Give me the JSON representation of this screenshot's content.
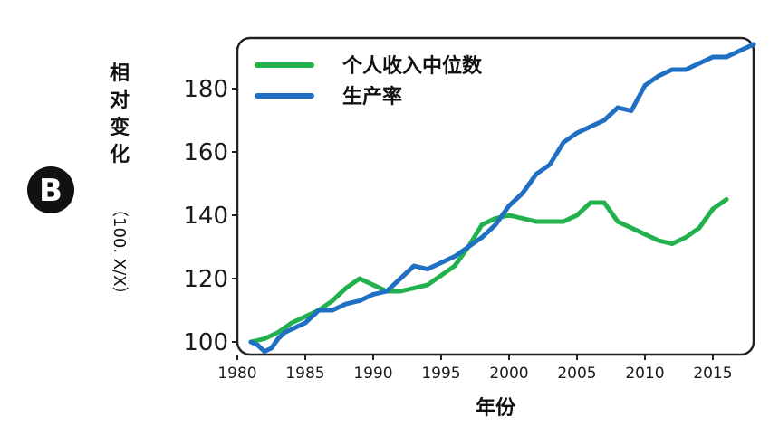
{
  "panel_label": "B",
  "chart_data": {
    "type": "line",
    "xlabel": "年份",
    "ylabel_main": "相对变化",
    "ylabel_unit": "（100. X/X）",
    "xlim": [
      1980,
      2018
    ],
    "ylim": [
      96,
      196
    ],
    "x_ticks": [
      1980,
      1985,
      1990,
      1995,
      2000,
      2005,
      2010,
      2015
    ],
    "y_ticks": [
      100,
      120,
      140,
      160,
      180
    ],
    "legend_position": "top-left",
    "series": [
      {
        "name": "个人收入中位数",
        "color": "#22b14c",
        "x": [
          1981,
          1982,
          1983,
          1984,
          1985,
          1986,
          1987,
          1988,
          1989,
          1990,
          1991,
          1992,
          1993,
          1994,
          1995,
          1996,
          1997,
          1998,
          1999,
          2000,
          2001,
          2002,
          2003,
          2004,
          2005,
          2006,
          2007,
          2008,
          2009,
          2010,
          2011,
          2012,
          2013,
          2014,
          2015,
          2016
        ],
        "values": [
          100,
          101,
          103,
          106,
          108,
          110,
          113,
          117,
          120,
          118,
          116,
          116,
          117,
          118,
          121,
          124,
          130,
          137,
          139,
          140,
          139,
          138,
          138,
          138,
          140,
          144,
          144,
          138,
          136,
          134,
          132,
          131,
          133,
          136,
          142,
          145
        ]
      },
      {
        "name": "生产率",
        "color": "#1f6fc3",
        "x": [
          1981,
          1981.5,
          1982,
          1982.5,
          1983,
          1983.5,
          1984,
          1985,
          1986,
          1987,
          1988,
          1989,
          1990,
          1991,
          1992,
          1993,
          1994,
          1995,
          1996,
          1997,
          1998,
          1999,
          2000,
          2001,
          2002,
          2003,
          2004,
          2005,
          2006,
          2007,
          2008,
          2009,
          2010,
          2011,
          2012,
          2013,
          2014,
          2015,
          2016,
          2017,
          2018
        ],
        "values": [
          100,
          99,
          97,
          98,
          101,
          103,
          104,
          106,
          110,
          110,
          112,
          113,
          115,
          116,
          120,
          124,
          123,
          125,
          127,
          130,
          133,
          137,
          143,
          147,
          153,
          156,
          163,
          166,
          168,
          170,
          174,
          173,
          181,
          184,
          186,
          186,
          188,
          190,
          190,
          192,
          194
        ]
      }
    ]
  }
}
